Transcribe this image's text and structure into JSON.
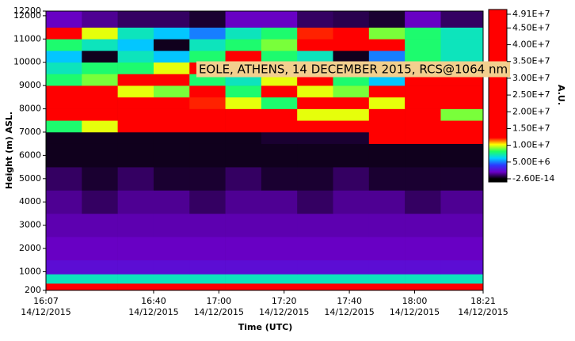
{
  "chart_data": {
    "type": "heatmap",
    "annotation": "EOLE, ATHENS, 14 DECEMBER 2015, RCS@1064 nm",
    "xlabel": "Time (UTC)",
    "ylabel": "Height (m) ASL.",
    "colorbar_label": "A.U.",
    "xlim": [
      967,
      1101
    ],
    "xticks": [
      {
        "value": 967,
        "label": [
          "16:07",
          "14/12/2015"
        ]
      },
      {
        "value": 1000,
        "label": [
          "16:40",
          "14/12/2015"
        ]
      },
      {
        "value": 1020,
        "label": [
          "17:00",
          "14/12/2015"
        ]
      },
      {
        "value": 1040,
        "label": [
          "17:20",
          "14/12/2015"
        ]
      },
      {
        "value": 1060,
        "label": [
          "17:40",
          "14/12/2015"
        ]
      },
      {
        "value": 1080,
        "label": [
          "18:00",
          "14/12/2015"
        ]
      },
      {
        "value": 1101,
        "label": [
          "18:21",
          "14/12/2015"
        ]
      }
    ],
    "ylim": [
      200,
      12200
    ],
    "yticks": [
      200,
      1000,
      2000,
      3000,
      4000,
      5000,
      6000,
      7000,
      8000,
      9000,
      10000,
      11000,
      12000,
      12200
    ],
    "clim": [
      -2.6e-14,
      49100000.0
    ],
    "cticks": [
      {
        "value": 49100000.0,
        "label": "4.91E+7"
      },
      {
        "value": 45000000.0,
        "label": "4.50E+7"
      },
      {
        "value": 40000000.0,
        "label": "4.00E+7"
      },
      {
        "value": 35000000.0,
        "label": "3.50E+7"
      },
      {
        "value": 30000000.0,
        "label": "3.00E+7"
      },
      {
        "value": 25000000.0,
        "label": "2.50E+7"
      },
      {
        "value": 20000000.0,
        "label": "2.00E+7"
      },
      {
        "value": 15000000.0,
        "label": "1.50E+7"
      },
      {
        "value": 10000000.0,
        "label": "1.00E+7"
      },
      {
        "value": 5000000.0,
        "label": "5.00E+6"
      },
      {
        "value": -2.6e-14,
        "label": "-2.60E-14"
      }
    ],
    "colors": [
      "#000000",
      "#6a00c8",
      "#2a3cff",
      "#00d0ff",
      "#20ff60",
      "#ffff00",
      "#ff0000"
    ],
    "x_edges": [
      967,
      978,
      989,
      1000,
      1011,
      1022,
      1033,
      1044,
      1055,
      1066,
      1077,
      1088,
      1101
    ],
    "y_edges": [
      200,
      500,
      900,
      1500,
      2500,
      3500,
      4500,
      5500,
      6500,
      7000,
      7500,
      8000,
      8500,
      9000,
      9500,
      10000,
      10500,
      11000,
      11500,
      12200
    ],
    "z": [
      [
        45000000.0,
        45000000.0,
        45000000.0,
        45000000.0,
        45000000.0,
        45000000.0,
        45000000.0,
        45000000.0,
        45000000.0,
        45000000.0,
        45000000.0,
        45000000.0
      ],
      [
        7000000.0,
        7000000.0,
        7000000.0,
        7000000.0,
        7000000.0,
        7000000.0,
        7000000.0,
        7000000.0,
        7000000.0,
        7000000.0,
        7000000.0,
        7000000.0
      ],
      [
        2500000.0,
        2500000.0,
        2500000.0,
        2500000.0,
        2500000.0,
        2500000.0,
        2500000.0,
        2500000.0,
        2500000.0,
        2500000.0,
        2500000.0,
        2500000.0
      ],
      [
        2000000.0,
        2000000.0,
        2000000.0,
        2000000.0,
        2000000.0,
        2000000.0,
        2000000.0,
        2000000.0,
        2000000.0,
        2000000.0,
        2000000.0,
        2000000.0
      ],
      [
        1800000.0,
        1800000.0,
        1800000.0,
        1800000.0,
        1800000.0,
        1800000.0,
        1800000.0,
        1800000.0,
        1800000.0,
        1800000.0,
        1800000.0,
        1800000.0
      ],
      [
        1500000.0,
        1000000.0,
        1500000.0,
        1500000.0,
        1000000.0,
        1500000.0,
        1500000.0,
        1000000.0,
        1500000.0,
        1500000.0,
        1000000.0,
        1500000.0
      ],
      [
        1000000.0,
        500000.0,
        1000000.0,
        500000.0,
        500000.0,
        1000000.0,
        500000.0,
        500000.0,
        1000000.0,
        500000.0,
        500000.0,
        500000.0
      ],
      [
        300000.0,
        300000.0,
        300000.0,
        300000.0,
        300000.0,
        300000.0,
        300000.0,
        300000.0,
        300000.0,
        300000.0,
        300000.0,
        300000.0
      ],
      [
        300000.0,
        300000.0,
        300000.0,
        300000.0,
        300000.0,
        300000.0,
        500000.0,
        500000.0,
        500000.0,
        15000000.0,
        20000000.0,
        20000000.0
      ],
      [
        8000000.0,
        10000000.0,
        30000000.0,
        30000000.0,
        30000000.0,
        40000000.0,
        40000000.0,
        30000000.0,
        20000000.0,
        40000000.0,
        40000000.0,
        30000000.0
      ],
      [
        30000000.0,
        40000000.0,
        40000000.0,
        40000000.0,
        30000000.0,
        30000000.0,
        15000000.0,
        10000000.0,
        10000000.0,
        20000000.0,
        15000000.0,
        9000000.0
      ],
      [
        40000000.0,
        30000000.0,
        40000000.0,
        20000000.0,
        12000000.0,
        10000000.0,
        8000000.0,
        20000000.0,
        15000000.0,
        10000000.0,
        20000000.0,
        15000000.0
      ],
      [
        15000000.0,
        20000000.0,
        10000000.0,
        9000000.0,
        15000000.0,
        8000000.0,
        20000000.0,
        10000000.0,
        9000000.0,
        30000000.0,
        30000000.0,
        40000000.0
      ],
      [
        8000000.0,
        9000000.0,
        15000000.0,
        20000000.0,
        8000000.0,
        7000000.0,
        10000000.0,
        20000000.0,
        8000000.0,
        6000000.0,
        15000000.0,
        20000000.0
      ],
      [
        7000000.0,
        8000000.0,
        8000000.0,
        10000000.0,
        20000000.0,
        9000000.0,
        7000000.0,
        8000000.0,
        10000000.0,
        7000000.0,
        6000000.0,
        8000000.0
      ],
      [
        6000000.0,
        300000.0,
        7000000.0,
        6000000.0,
        8000000.0,
        15000000.0,
        8000000.0,
        7000000.0,
        300000.0,
        5000000.0,
        8000000.0,
        7000000.0
      ],
      [
        8000000.0,
        7000000.0,
        6000000.0,
        300000.0,
        7000000.0,
        8000000.0,
        9000000.0,
        30000000.0,
        30000000.0,
        20000000.0,
        8000000.0,
        7000000.0
      ],
      [
        20000000.0,
        10000000.0,
        7000000.0,
        6000000.0,
        5000000.0,
        7000000.0,
        8000000.0,
        12000000.0,
        15000000.0,
        9000000.0,
        8000000.0,
        7000000.0
      ],
      [
        2000000.0,
        1500000.0,
        1000000.0,
        1000000.0,
        500000.0,
        2000000.0,
        2000000.0,
        1000000.0,
        800000.0,
        500000.0,
        2000000.0,
        1000000.0
      ]
    ]
  }
}
